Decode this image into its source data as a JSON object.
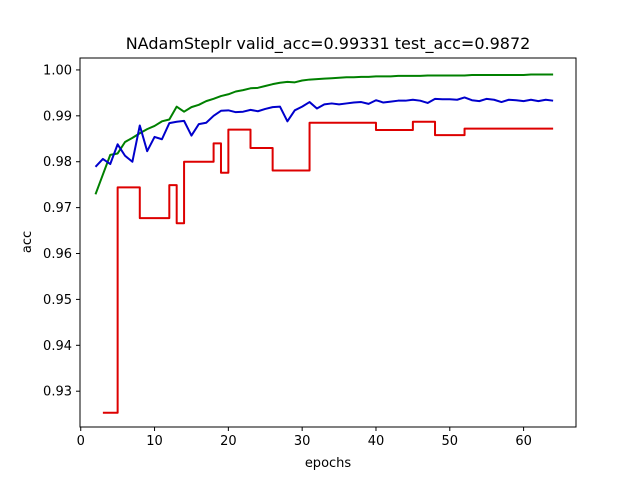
{
  "chart_data": {
    "type": "line",
    "title": "NAdamSteplr valid_acc=0.99331  test_acc=0.9872",
    "xlabel": "epochs",
    "ylabel": "acc",
    "xlim": [
      -0.1,
      67.1
    ],
    "ylim": [
      0.9222,
      1.0026
    ],
    "xticks": [
      0,
      10,
      20,
      30,
      40,
      50,
      60
    ],
    "yticks": [
      0.93,
      0.94,
      0.95,
      0.96,
      0.97,
      0.98,
      0.99,
      1.0
    ],
    "ytick_labels": [
      "0.93",
      "0.94",
      "0.95",
      "0.96",
      "0.97",
      "0.98",
      "0.99",
      "1.00"
    ],
    "grid": false,
    "legend": "none",
    "series": [
      {
        "color": "#008000",
        "x": [
          2,
          3,
          4,
          5,
          6,
          7,
          8,
          9,
          10,
          11,
          12,
          13,
          14,
          15,
          16,
          17,
          18,
          19,
          20,
          21,
          22,
          23,
          24,
          25,
          26,
          27,
          28,
          29,
          30,
          31,
          32,
          33,
          34,
          35,
          36,
          37,
          38,
          39,
          40,
          41,
          42,
          43,
          44,
          45,
          46,
          47,
          48,
          49,
          50,
          51,
          52,
          53,
          54,
          55,
          56,
          57,
          58,
          59,
          60,
          61,
          62,
          63,
          64
        ],
        "y": [
          0.9729,
          0.9772,
          0.9815,
          0.9818,
          0.9843,
          0.9852,
          0.9862,
          0.9871,
          0.9878,
          0.9888,
          0.9892,
          0.992,
          0.9909,
          0.9919,
          0.9924,
          0.9932,
          0.9937,
          0.9943,
          0.9947,
          0.9953,
          0.9956,
          0.996,
          0.9961,
          0.9965,
          0.9969,
          0.9972,
          0.9974,
          0.9973,
          0.9977,
          0.9979,
          0.998,
          0.9981,
          0.9982,
          0.9983,
          0.9984,
          0.9984,
          0.9985,
          0.9985,
          0.9986,
          0.9986,
          0.9986,
          0.9987,
          0.9987,
          0.9987,
          0.9987,
          0.9988,
          0.9988,
          0.9988,
          0.9988,
          0.9988,
          0.9988,
          0.9989,
          0.9989,
          0.9989,
          0.9989,
          0.9989,
          0.9989,
          0.9989,
          0.9989,
          0.999,
          0.999,
          0.999,
          0.999
        ]
      },
      {
        "color": "#0000cc",
        "x": [
          2,
          3,
          4,
          5,
          6,
          7,
          8,
          9,
          10,
          11,
          12,
          13,
          14,
          15,
          16,
          17,
          18,
          19,
          20,
          21,
          22,
          23,
          24,
          25,
          26,
          27,
          28,
          29,
          30,
          31,
          32,
          33,
          34,
          35,
          36,
          37,
          38,
          39,
          40,
          41,
          42,
          43,
          44,
          45,
          46,
          47,
          48,
          49,
          50,
          51,
          52,
          53,
          54,
          55,
          56,
          57,
          58,
          59,
          60,
          61,
          62,
          63,
          64
        ],
        "y": [
          0.9789,
          0.9806,
          0.9795,
          0.9838,
          0.9813,
          0.98,
          0.9879,
          0.9823,
          0.9854,
          0.9849,
          0.9884,
          0.9887,
          0.9889,
          0.9857,
          0.9882,
          0.9885,
          0.99,
          0.9911,
          0.9912,
          0.9908,
          0.9909,
          0.9913,
          0.991,
          0.9915,
          0.9919,
          0.992,
          0.9888,
          0.9912,
          0.992,
          0.993,
          0.9916,
          0.9925,
          0.9927,
          0.9925,
          0.9927,
          0.9929,
          0.993,
          0.9926,
          0.9934,
          0.9929,
          0.9931,
          0.9933,
          0.9933,
          0.9935,
          0.9933,
          0.9928,
          0.9937,
          0.9936,
          0.9936,
          0.9935,
          0.994,
          0.9934,
          0.9932,
          0.9937,
          0.9935,
          0.993,
          0.9935,
          0.9934,
          0.9932,
          0.9935,
          0.9932,
          0.9935,
          0.9933
        ]
      },
      {
        "color": "#dd0000",
        "step": "post",
        "x": [
          3,
          5,
          8,
          12,
          13,
          14,
          18,
          19,
          20,
          23,
          26,
          31,
          40,
          45,
          48,
          52,
          64
        ],
        "y": [
          0.9253,
          0.9744,
          0.9677,
          0.9749,
          0.9666,
          0.98,
          0.984,
          0.9776,
          0.987,
          0.983,
          0.9781,
          0.9885,
          0.9869,
          0.9887,
          0.9858,
          0.9872,
          0.9872
        ]
      }
    ]
  }
}
